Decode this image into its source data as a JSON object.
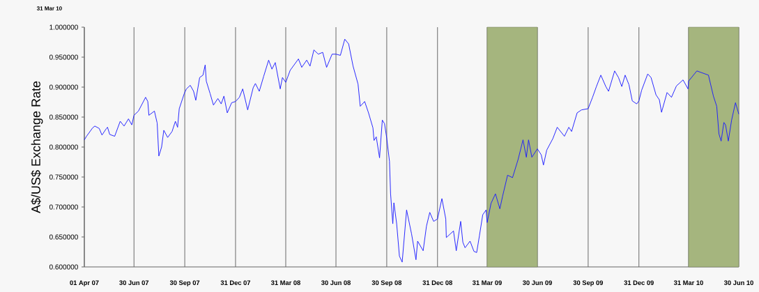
{
  "chart_data": {
    "type": "line",
    "ylabel": "A$/US$ Exchange Rate",
    "annotations": [
      "31 Mar 10"
    ],
    "x": [
      "2007-04-01",
      "2007-04-05",
      "2007-04-16",
      "2007-04-20",
      "2007-04-28",
      "2007-05-03",
      "2007-05-11",
      "2007-05-13",
      "2007-05-17",
      "2007-05-26",
      "2007-06-05",
      "2007-06-12",
      "2007-06-20",
      "2007-06-26",
      "2007-06-30",
      "2007-07-08",
      "2007-07-21",
      "2007-07-25",
      "2007-07-27",
      "2007-08-06",
      "2007-08-11",
      "2007-08-14",
      "2007-08-19",
      "2007-08-23",
      "2007-08-30",
      "2007-09-07",
      "2007-09-13",
      "2007-09-17",
      "2007-09-20",
      "2007-09-29",
      "2007-10-03",
      "2007-10-10",
      "2007-10-16",
      "2007-10-20",
      "2007-10-27",
      "2007-11-02",
      "2007-11-06",
      "2007-11-08",
      "2007-11-15",
      "2007-11-21",
      "2007-11-29",
      "2007-12-05",
      "2007-12-10",
      "2007-12-16",
      "2007-12-24",
      "2007-12-31",
      "2008-01-07",
      "2008-01-13",
      "2008-01-22",
      "2008-02-01",
      "2008-02-05",
      "2008-02-12",
      "2008-02-20",
      "2008-02-29",
      "2008-03-06",
      "2008-03-12",
      "2008-03-21",
      "2008-03-25",
      "2008-03-31",
      "2008-04-08",
      "2008-04-23",
      "2008-04-29",
      "2008-05-08",
      "2008-05-14",
      "2008-05-21",
      "2008-05-29",
      "2008-06-06",
      "2008-06-13",
      "2008-06-23",
      "2008-06-30",
      "2008-07-08",
      "2008-07-16",
      "2008-07-23",
      "2008-07-31",
      "2008-08-09",
      "2008-08-13",
      "2008-08-21",
      "2008-08-28",
      "2008-09-05",
      "2008-09-07",
      "2008-09-11",
      "2008-09-17",
      "2008-09-22",
      "2008-09-26",
      "2008-09-30",
      "2008-10-05",
      "2008-10-07",
      "2008-10-11",
      "2008-10-13",
      "2008-10-18",
      "2008-10-23",
      "2008-10-28",
      "2008-11-05",
      "2008-11-14",
      "2008-11-22",
      "2008-11-25",
      "2008-12-05",
      "2008-12-11",
      "2008-12-17",
      "2008-12-24",
      "2008-12-31",
      "2009-01-08",
      "2009-01-15",
      "2009-01-16",
      "2009-01-29",
      "2009-02-03",
      "2009-02-11",
      "2009-02-15",
      "2009-02-19",
      "2009-02-28",
      "2009-03-07",
      "2009-03-12",
      "2009-03-17",
      "2009-03-23",
      "2009-03-29",
      "2009-03-31",
      "2009-04-07",
      "2009-04-15",
      "2009-04-23",
      "2009-04-28",
      "2009-05-07",
      "2009-05-16",
      "2009-05-26",
      "2009-06-04",
      "2009-06-10",
      "2009-06-14",
      "2009-06-20",
      "2009-06-30",
      "2009-07-07",
      "2009-07-11",
      "2009-07-17",
      "2009-07-28",
      "2009-08-05",
      "2009-08-18",
      "2009-08-26",
      "2009-08-31",
      "2009-09-10",
      "2009-09-18",
      "2009-09-30",
      "2009-10-08",
      "2009-10-15",
      "2009-10-23",
      "2009-11-01",
      "2009-11-06",
      "2009-11-17",
      "2009-11-24",
      "2009-11-30",
      "2009-12-06",
      "2009-12-13",
      "2009-12-19",
      "2009-12-27",
      "2009-12-31",
      "2010-01-05",
      "2010-01-16",
      "2010-01-22",
      "2010-01-31",
      "2010-02-06",
      "2010-02-10",
      "2010-02-20",
      "2010-02-28",
      "2010-03-09",
      "2010-03-21",
      "2010-03-30",
      "2010-03-31",
      "2010-04-15",
      "2010-04-24",
      "2010-05-06",
      "2010-05-15",
      "2010-05-21",
      "2010-05-25",
      "2010-05-29",
      "2010-06-03",
      "2010-06-06",
      "2010-06-11",
      "2010-06-17",
      "2010-06-24",
      "2010-06-30"
    ],
    "series": [
      {
        "color": "#1a1aff",
        "values": [
          0.812,
          0.818,
          0.832,
          0.835,
          0.831,
          0.82,
          0.831,
          0.833,
          0.821,
          0.818,
          0.843,
          0.835,
          0.847,
          0.837,
          0.853,
          0.86,
          0.883,
          0.876,
          0.853,
          0.86,
          0.84,
          0.785,
          0.8,
          0.828,
          0.816,
          0.826,
          0.843,
          0.833,
          0.864,
          0.889,
          0.897,
          0.903,
          0.893,
          0.878,
          0.916,
          0.92,
          0.937,
          0.91,
          0.889,
          0.87,
          0.881,
          0.872,
          0.885,
          0.857,
          0.874,
          0.876,
          0.883,
          0.897,
          0.862,
          0.899,
          0.906,
          0.893,
          0.918,
          0.945,
          0.93,
          0.941,
          0.897,
          0.916,
          0.908,
          0.928,
          0.947,
          0.933,
          0.945,
          0.935,
          0.962,
          0.955,
          0.958,
          0.933,
          0.955,
          0.955,
          0.953,
          0.98,
          0.972,
          0.935,
          0.905,
          0.868,
          0.876,
          0.857,
          0.832,
          0.811,
          0.817,
          0.782,
          0.845,
          0.839,
          0.815,
          0.776,
          0.722,
          0.672,
          0.707,
          0.672,
          0.618,
          0.608,
          0.695,
          0.655,
          0.612,
          0.643,
          0.627,
          0.668,
          0.691,
          0.676,
          0.68,
          0.714,
          0.68,
          0.649,
          0.66,
          0.627,
          0.676,
          0.641,
          0.632,
          0.643,
          0.626,
          0.624,
          0.652,
          0.687,
          0.695,
          0.674,
          0.706,
          0.722,
          0.697,
          0.718,
          0.753,
          0.749,
          0.779,
          0.812,
          0.783,
          0.812,
          0.783,
          0.797,
          0.787,
          0.77,
          0.795,
          0.814,
          0.833,
          0.818,
          0.833,
          0.826,
          0.857,
          0.862,
          0.864,
          0.883,
          0.901,
          0.92,
          0.901,
          0.893,
          0.927,
          0.916,
          0.901,
          0.92,
          0.904,
          0.877,
          0.872,
          0.877,
          0.895,
          0.922,
          0.916,
          0.887,
          0.879,
          0.858,
          0.891,
          0.883,
          0.902,
          0.912,
          0.897,
          0.91,
          0.927,
          0.924,
          0.92,
          0.885,
          0.868,
          0.822,
          0.81,
          0.841,
          0.837,
          0.81,
          0.845,
          0.874,
          0.855
        ]
      }
    ],
    "xlim": [
      "2007-04-01",
      "2010-06-30"
    ],
    "xticks": [
      {
        "value": "2007-04-01",
        "label": "01 Apr 07"
      },
      {
        "value": "2007-06-30",
        "label": "30 Jun 07"
      },
      {
        "value": "2007-09-30",
        "label": "30 Sep 07"
      },
      {
        "value": "2007-12-31",
        "label": "31 Dec 07"
      },
      {
        "value": "2008-03-31",
        "label": "31 Mar 08"
      },
      {
        "value": "2008-06-30",
        "label": "30 Jun 08"
      },
      {
        "value": "2008-09-30",
        "label": "30 Sep 08"
      },
      {
        "value": "2008-12-31",
        "label": "31 Dec 08"
      },
      {
        "value": "2009-03-31",
        "label": "31 Mar 09"
      },
      {
        "value": "2009-06-30",
        "label": "30 Jun 09"
      },
      {
        "value": "2009-09-30",
        "label": "30 Sep 09"
      },
      {
        "value": "2009-12-31",
        "label": "31 Dec 09"
      },
      {
        "value": "2010-03-31",
        "label": "31 Mar 10"
      },
      {
        "value": "2010-06-30",
        "label": "30 Jun 10"
      }
    ],
    "ylim": [
      0.6,
      1.0
    ],
    "yticks": [
      {
        "value": 0.6,
        "label": "0.600000"
      },
      {
        "value": 0.65,
        "label": "0.650000"
      },
      {
        "value": 0.7,
        "label": "0.700000"
      },
      {
        "value": 0.75,
        "label": "0.750000"
      },
      {
        "value": 0.8,
        "label": "0.800000"
      },
      {
        "value": 0.85,
        "label": "0.850000"
      },
      {
        "value": 0.9,
        "label": "0.900000"
      },
      {
        "value": 0.95,
        "label": "0.950000"
      },
      {
        "value": 1.0,
        "label": "1.000000"
      }
    ],
    "grid": "x",
    "bands": [
      {
        "axis": "x",
        "from": "2009-03-31",
        "to": "2009-06-30",
        "color": "#a5b57e"
      },
      {
        "axis": "x",
        "from": "2010-03-31",
        "to": "2010-06-30",
        "color": "#a5b57e"
      }
    ]
  }
}
